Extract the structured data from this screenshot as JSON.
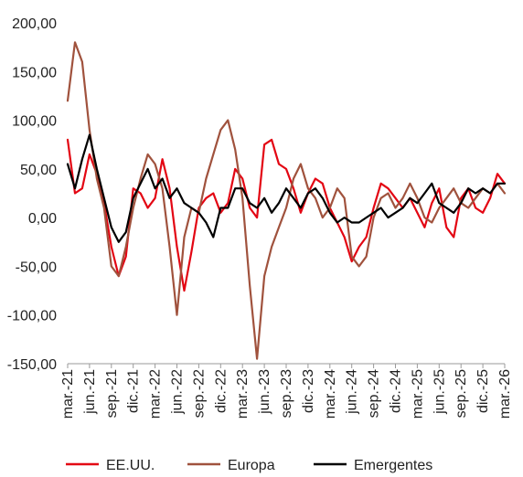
{
  "chart_data": {
    "type": "line",
    "title": "",
    "xlabel": "",
    "ylabel": "",
    "ylim": [
      -150,
      200
    ],
    "yticks": [
      -150,
      -100,
      -50,
      0,
      50,
      100,
      150,
      200
    ],
    "ytick_labels": [
      "-150,00",
      "-100,00",
      "-50,00",
      "0,00",
      "50,00",
      "100,00",
      "150,00",
      "200,00"
    ],
    "xlim": [
      "2021-03",
      "2026-03"
    ],
    "xtick_labels": [
      "mar.-21",
      "jun.-21",
      "sep.-21",
      "dic.-21",
      "mar.-22",
      "jun.-22",
      "sep.-22",
      "dic.-22",
      "mar.-23",
      "jun.-23",
      "sep.-23",
      "dic.-23",
      "mar.-24",
      "jun.-24",
      "sep.-24",
      "dic.-24",
      "mar.-25",
      "jun.-25",
      "sep.-25",
      "dic.-25",
      "mar.-26"
    ],
    "grid": false,
    "legend_position": "bottom",
    "series": [
      {
        "name": "EE.UU.",
        "color": "#e30613",
        "x": [
          "2021-03",
          "2021-04",
          "2021-05",
          "2021-06",
          "2021-07",
          "2021-08",
          "2021-09",
          "2021-10",
          "2021-11",
          "2021-12",
          "2022-01",
          "2022-02",
          "2022-03",
          "2022-04",
          "2022-05",
          "2022-06",
          "2022-07",
          "2022-08",
          "2022-09",
          "2022-10",
          "2022-11",
          "2022-12",
          "2023-01",
          "2023-02",
          "2023-03",
          "2023-04",
          "2023-05",
          "2023-06",
          "2023-07",
          "2023-08",
          "2023-09",
          "2023-10",
          "2023-11",
          "2023-12",
          "2024-01",
          "2024-02",
          "2024-03",
          "2024-04",
          "2024-05",
          "2024-06",
          "2024-07",
          "2024-08",
          "2024-09",
          "2024-10",
          "2024-11",
          "2024-12",
          "2025-01",
          "2025-02",
          "2025-03",
          "2025-04",
          "2025-05",
          "2025-06",
          "2025-07",
          "2025-08",
          "2025-09",
          "2025-10",
          "2025-11",
          "2025-12",
          "2026-01",
          "2026-02",
          "2026-03"
        ],
        "values": [
          80,
          25,
          30,
          65,
          45,
          15,
          -30,
          -60,
          -40,
          30,
          25,
          10,
          20,
          60,
          30,
          -30,
          -75,
          -35,
          10,
          20,
          25,
          5,
          15,
          50,
          40,
          10,
          0,
          75,
          80,
          55,
          50,
          30,
          5,
          25,
          40,
          35,
          10,
          -5,
          -20,
          -45,
          -30,
          -20,
          10,
          35,
          30,
          20,
          10,
          20,
          5,
          -10,
          15,
          30,
          -10,
          -20,
          20,
          30,
          10,
          5,
          20,
          45,
          35
        ]
      },
      {
        "name": "Europa",
        "color": "#a0523d",
        "x": [
          "2021-03",
          "2021-04",
          "2021-05",
          "2021-06",
          "2021-07",
          "2021-08",
          "2021-09",
          "2021-10",
          "2021-11",
          "2021-12",
          "2022-01",
          "2022-02",
          "2022-03",
          "2022-04",
          "2022-05",
          "2022-06",
          "2022-07",
          "2022-08",
          "2022-09",
          "2022-10",
          "2022-11",
          "2022-12",
          "2023-01",
          "2023-02",
          "2023-03",
          "2023-04",
          "2023-05",
          "2023-06",
          "2023-07",
          "2023-08",
          "2023-09",
          "2023-10",
          "2023-11",
          "2023-12",
          "2024-01",
          "2024-02",
          "2024-03",
          "2024-04",
          "2024-05",
          "2024-06",
          "2024-07",
          "2024-08",
          "2024-09",
          "2024-10",
          "2024-11",
          "2024-12",
          "2025-01",
          "2025-02",
          "2025-03",
          "2025-04",
          "2025-05",
          "2025-06",
          "2025-07",
          "2025-08",
          "2025-09",
          "2025-10",
          "2025-11",
          "2025-12",
          "2026-01",
          "2026-02",
          "2026-03"
        ],
        "values": [
          120,
          180,
          160,
          90,
          40,
          10,
          -50,
          -60,
          -30,
          10,
          40,
          65,
          55,
          30,
          -30,
          -100,
          -20,
          10,
          5,
          40,
          65,
          90,
          100,
          70,
          20,
          -70,
          -145,
          -60,
          -30,
          -10,
          10,
          40,
          55,
          30,
          20,
          0,
          10,
          30,
          20,
          -40,
          -50,
          -40,
          0,
          20,
          25,
          10,
          20,
          35,
          20,
          0,
          -5,
          10,
          20,
          30,
          15,
          10,
          20,
          30,
          25,
          35,
          25
        ]
      },
      {
        "name": "Emergentes",
        "color": "#000000",
        "x": [
          "2021-03",
          "2021-04",
          "2021-05",
          "2021-06",
          "2021-07",
          "2021-08",
          "2021-09",
          "2021-10",
          "2021-11",
          "2021-12",
          "2022-01",
          "2022-02",
          "2022-03",
          "2022-04",
          "2022-05",
          "2022-06",
          "2022-07",
          "2022-08",
          "2022-09",
          "2022-10",
          "2022-11",
          "2022-12",
          "2023-01",
          "2023-02",
          "2023-03",
          "2023-04",
          "2023-05",
          "2023-06",
          "2023-07",
          "2023-08",
          "2023-09",
          "2023-10",
          "2023-11",
          "2023-12",
          "2024-01",
          "2024-02",
          "2024-03",
          "2024-04",
          "2024-05",
          "2024-06",
          "2024-07",
          "2024-08",
          "2024-09",
          "2024-10",
          "2024-11",
          "2024-12",
          "2025-01",
          "2025-02",
          "2025-03",
          "2025-04",
          "2025-05",
          "2025-06",
          "2025-07",
          "2025-08",
          "2025-09",
          "2025-10",
          "2025-11",
          "2025-12",
          "2026-01",
          "2026-02",
          "2026-03"
        ],
        "values": [
          55,
          30,
          60,
          85,
          50,
          20,
          -10,
          -25,
          -15,
          20,
          35,
          50,
          30,
          40,
          20,
          30,
          15,
          10,
          5,
          -5,
          -20,
          10,
          10,
          30,
          30,
          15,
          10,
          20,
          5,
          15,
          30,
          20,
          10,
          25,
          30,
          20,
          5,
          -5,
          0,
          -5,
          -5,
          0,
          5,
          10,
          0,
          5,
          10,
          20,
          15,
          25,
          35,
          15,
          10,
          5,
          15,
          30,
          25,
          30,
          25,
          35,
          35
        ]
      }
    ]
  }
}
